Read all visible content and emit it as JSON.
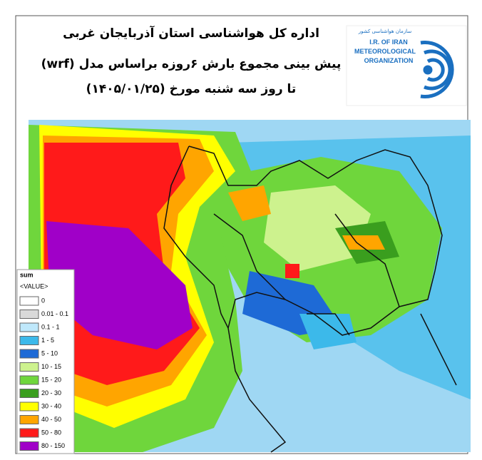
{
  "header": {
    "lines": [
      "اداره کل هواشناسی استان آذربایجان غربی",
      "پیش بینی مجموع بارش ۶روزه  براساس مدل (wrf)",
      "تا روز سه شنبه مورخ  (۱۴۰۵/۰۱/۲۵)"
    ]
  },
  "logo": {
    "persian": "سازمان هواشناسی کشور",
    "lines": [
      "I.R. OF IRAN",
      "METEOROLOGICAL",
      "ORGANIZATION"
    ]
  },
  "legend": {
    "title": "sum",
    "subtitle": "<VALUE>",
    "items": [
      {
        "label": "0",
        "color": "#ffffff"
      },
      {
        "label": "0.01 - 0.1",
        "color": "#d9d9d9"
      },
      {
        "label": "0.1 - 1",
        "color": "#bfe8fb"
      },
      {
        "label": "1 - 5",
        "color": "#3cb9ea"
      },
      {
        "label": "5 - 10",
        "color": "#1e6ad6"
      },
      {
        "label": "10 - 15",
        "color": "#cdf28e"
      },
      {
        "label": "15 - 20",
        "color": "#6fd63c"
      },
      {
        "label": "20 - 30",
        "color": "#3a9e1e"
      },
      {
        "label": "30 - 40",
        "color": "#ffff00"
      },
      {
        "label": "40 - 50",
        "color": "#ffa500"
      },
      {
        "label": "50 - 80",
        "color": "#ff1a1a"
      },
      {
        "label": "80 - 150",
        "color": "#a000c8"
      }
    ]
  }
}
